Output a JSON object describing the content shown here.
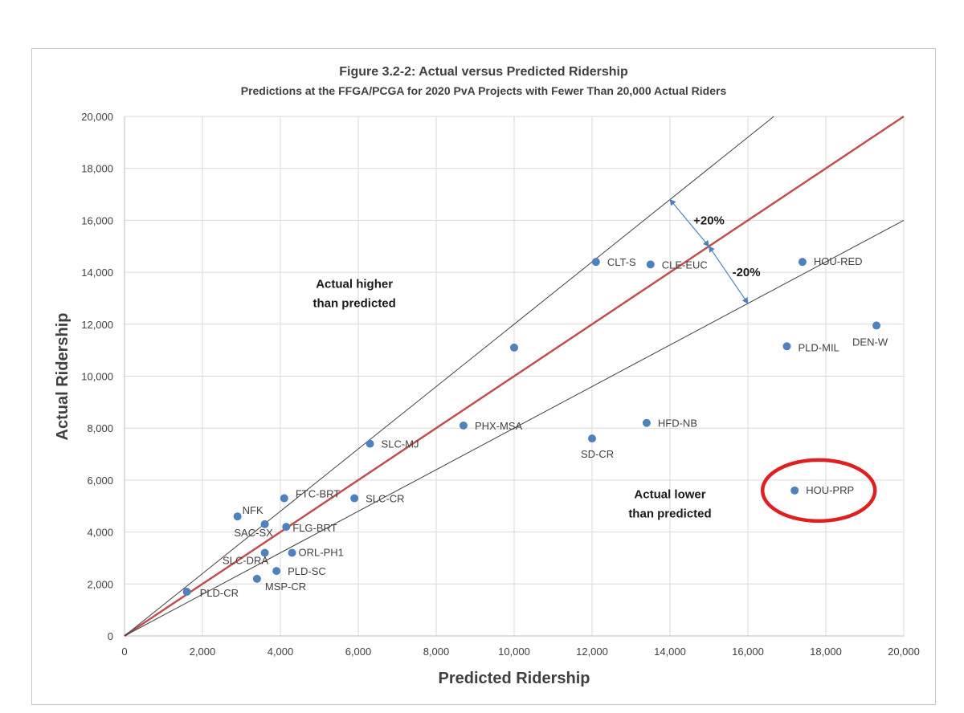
{
  "chart_data": {
    "type": "scatter",
    "title": "Figure 3.2-2:  Actual versus Predicted Ridership",
    "subtitle": "Predictions at the FFGA/PCGA for 2020 PvA Projects with Fewer Than 20,000 Actual Riders",
    "xlabel": "Predicted Ridership",
    "ylabel": "Actual Ridership",
    "xlim": [
      0,
      20000
    ],
    "ylim": [
      0,
      20000
    ],
    "x_ticks": [
      0,
      2000,
      4000,
      6000,
      8000,
      10000,
      12000,
      14000,
      16000,
      18000,
      20000
    ],
    "y_ticks": [
      0,
      2000,
      4000,
      6000,
      8000,
      10000,
      12000,
      14000,
      16000,
      18000,
      20000
    ],
    "x_tick_labels": [
      "0",
      "2,000",
      "4,000",
      "6,000",
      "8,000",
      "10,000",
      "12,000",
      "14,000",
      "16,000",
      "18,000",
      "20,000"
    ],
    "y_tick_labels": [
      "0",
      "2,000",
      "4,000",
      "6,000",
      "8,000",
      "10,000",
      "12,000",
      "14,000",
      "16,000",
      "18,000",
      "20,000"
    ],
    "grid": true,
    "points": [
      {
        "label": "PLD-CR",
        "x": 1600,
        "y": 1700
      },
      {
        "label": "NFK",
        "x": 2900,
        "y": 4600
      },
      {
        "label": "MSP-CR",
        "x": 3400,
        "y": 2200
      },
      {
        "label": "SAC-SX",
        "x": 3600,
        "y": 4300
      },
      {
        "label": "SLC-DRA",
        "x": 3600,
        "y": 3200
      },
      {
        "label": "PLD-SC",
        "x": 3900,
        "y": 2500
      },
      {
        "label": "FTC-BRT",
        "x": 4100,
        "y": 5300
      },
      {
        "label": "FLG-BRT",
        "x": 4150,
        "y": 4200
      },
      {
        "label": "ORL-PH1",
        "x": 4300,
        "y": 3200
      },
      {
        "label": "SLC-CR",
        "x": 5900,
        "y": 5300
      },
      {
        "label": "SLC-MJ",
        "x": 6300,
        "y": 7400
      },
      {
        "label": "PHX-MSA",
        "x": 8700,
        "y": 8100
      },
      {
        "label": "",
        "x": 10000,
        "y": 11100
      },
      {
        "label": "SD-CR",
        "x": 12000,
        "y": 7600
      },
      {
        "label": "CLT-S",
        "x": 12100,
        "y": 14400
      },
      {
        "label": "HFD-NB",
        "x": 13400,
        "y": 8200
      },
      {
        "label": "CLE-EUC",
        "x": 13500,
        "y": 14300
      },
      {
        "label": "PLD-MIL",
        "x": 17000,
        "y": 11150
      },
      {
        "label": "HOU-PRP",
        "x": 17200,
        "y": 5600
      },
      {
        "label": "HOU-RED",
        "x": 17400,
        "y": 14400
      },
      {
        "label": "DEN-W",
        "x": 19300,
        "y": 11950
      }
    ],
    "reference_lines": [
      {
        "slope": 1.0,
        "color": "#c0504d"
      },
      {
        "slope": 1.2,
        "color": "#404040"
      },
      {
        "slope": 0.8,
        "color": "#404040"
      }
    ],
    "annotations": {
      "plus_label": "+20%",
      "minus_label": "-20%",
      "upper_note": [
        "Actual higher",
        "than predicted"
      ],
      "lower_note": [
        "Actual lower",
        "than predicted"
      ],
      "highlighted_point": "HOU-PRP"
    },
    "colors": {
      "point": "#4f81bd",
      "identity_line": "#c0504d",
      "bound_lines": "#404040",
      "arrow": "#4f81bd",
      "highlight_ring": "#e02020",
      "grid": "#d9d9d9"
    }
  }
}
